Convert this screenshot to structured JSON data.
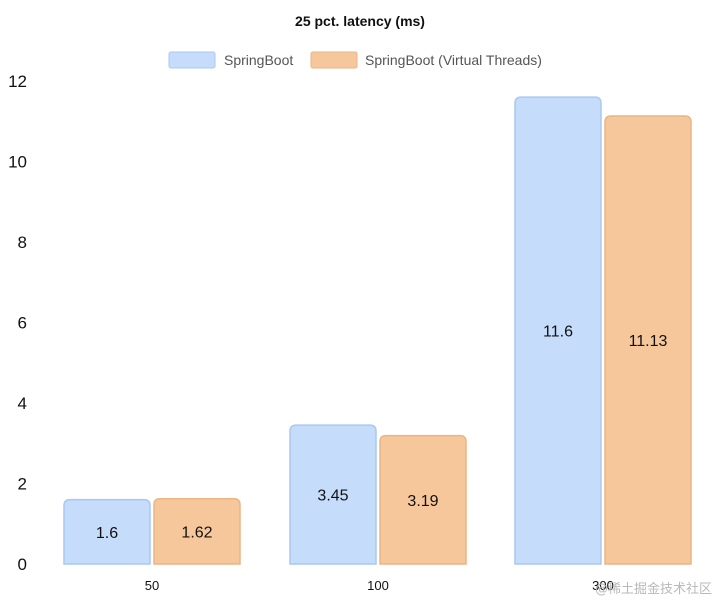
{
  "chart_data": {
    "type": "bar",
    "title": "25 pct. latency (ms)",
    "categories": [
      "50",
      "100",
      "300"
    ],
    "series": [
      {
        "name": "SpringBoot",
        "values": [
          1.6,
          3.45,
          11.6
        ],
        "fill": "#c5dcfb",
        "stroke": "#a9c8f2"
      },
      {
        "name": "SpringBoot (Virtual Threads)",
        "values": [
          1.62,
          3.19,
          11.13
        ],
        "fill": "#f6c79a",
        "stroke": "#e9b585"
      }
    ],
    "data_labels": [
      [
        "1.6",
        "3.45",
        "11.6"
      ],
      [
        "1.62",
        "3.19",
        "11.13"
      ]
    ],
    "yticks": [
      "0",
      "2",
      "4",
      "6",
      "8",
      "10",
      "12"
    ],
    "ylim": [
      0,
      12
    ],
    "xlabel": "",
    "ylabel": "",
    "grid": false,
    "legend_position": "top-center"
  },
  "watermark": "@稀土掘金技术社区"
}
